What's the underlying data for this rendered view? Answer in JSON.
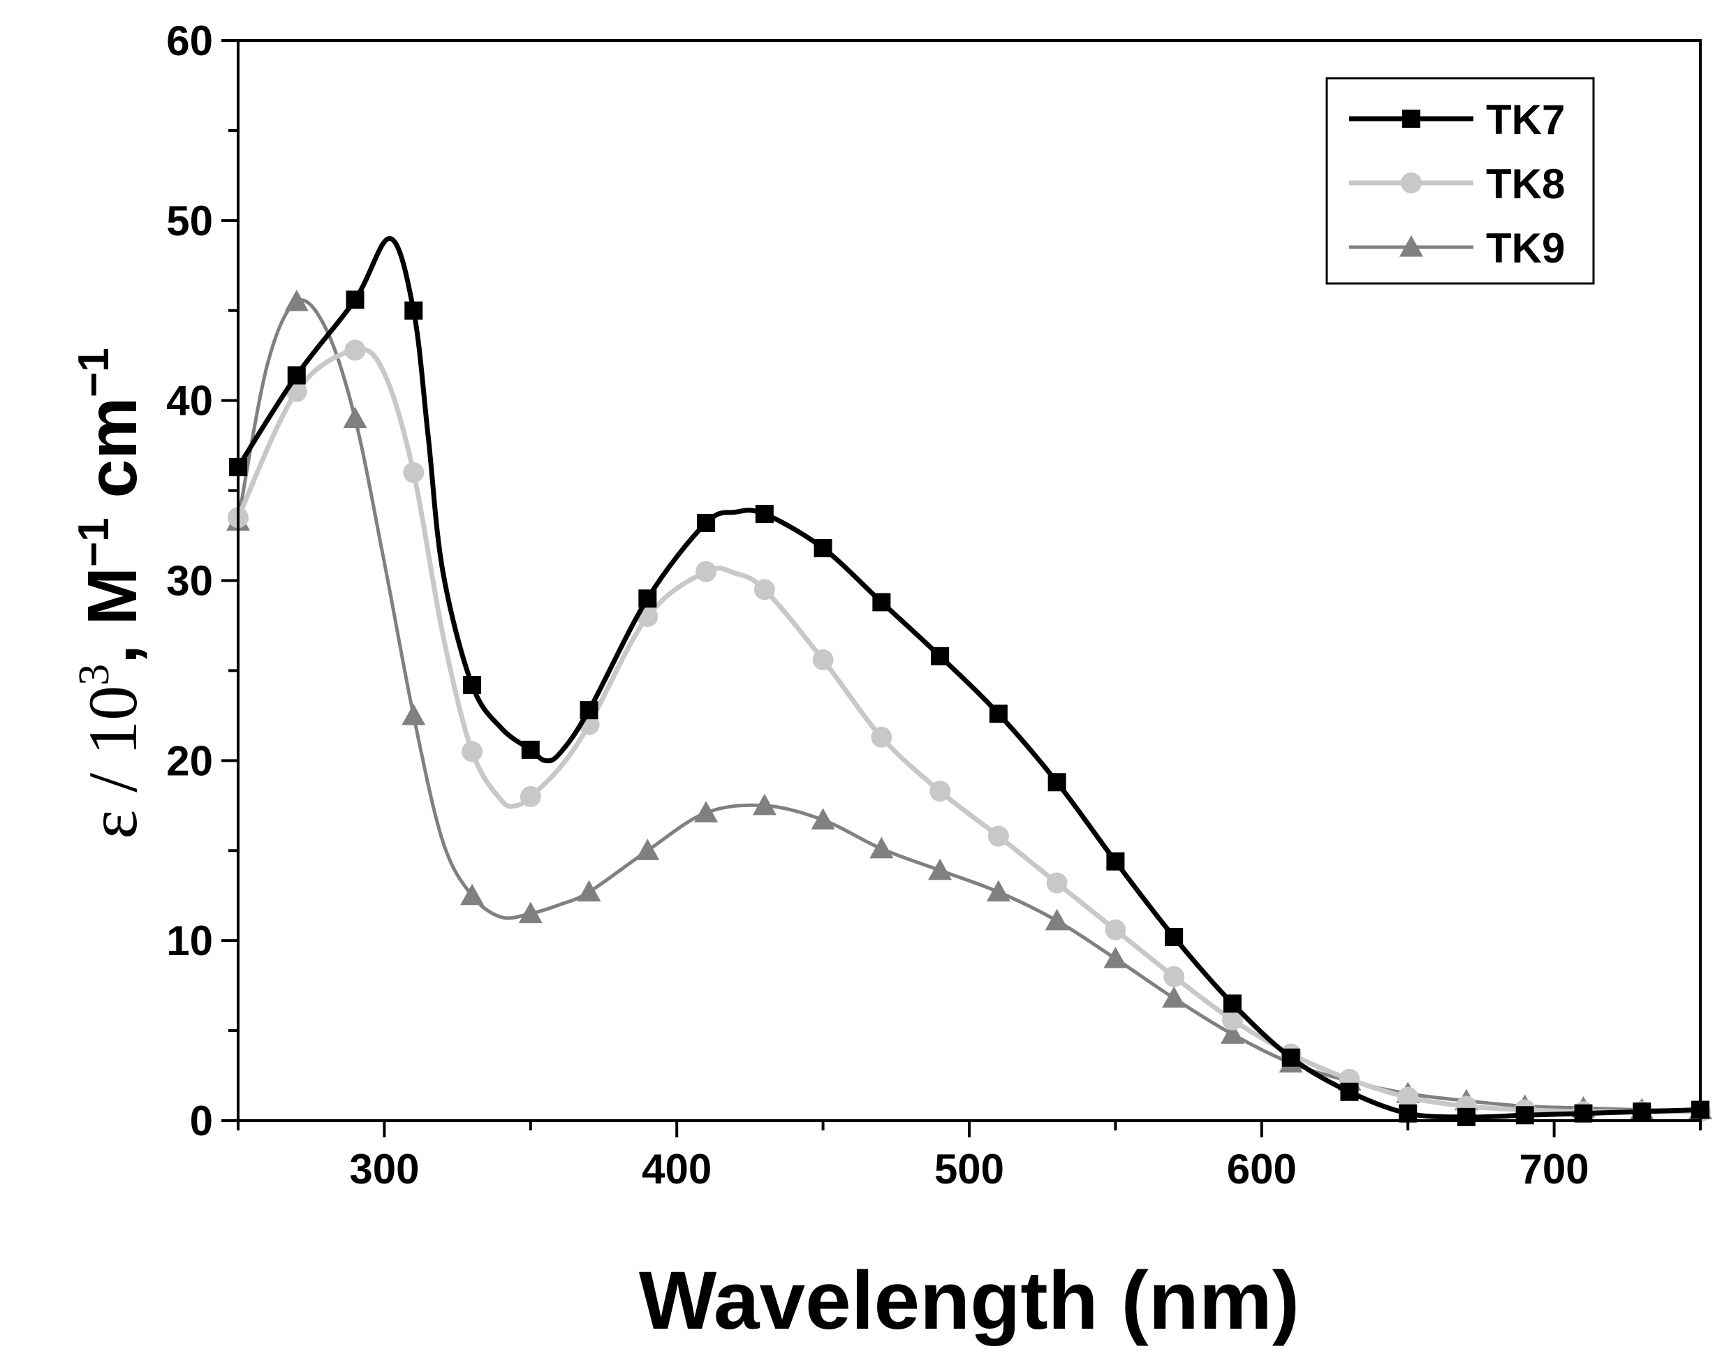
{
  "chart_data": {
    "type": "line",
    "title": "",
    "xlabel": "Wavelength (nm)",
    "ylabel": {
      "prefix": "ε / 10",
      "prefix_sup": "3",
      "sep": ", ",
      "m": "M",
      "m_sup": "−1",
      "cm": " cm",
      "cm_sup": "−1"
    },
    "xlim": [
      250,
      750
    ],
    "ylim": [
      0,
      60
    ],
    "xticks": [
      300,
      400,
      500,
      600,
      700
    ],
    "xtick_labels": [
      "300",
      "400",
      "500",
      "600",
      "700"
    ],
    "yticks": [
      0,
      10,
      20,
      30,
      40,
      50,
      60
    ],
    "ytick_labels": [
      "0",
      "10",
      "20",
      "30",
      "40",
      "50",
      "60"
    ],
    "grid": false,
    "legend_position": "top-right",
    "series": [
      {
        "name": "TK7",
        "color": "#000000",
        "marker": "square",
        "x": [
          250,
          270,
          290,
          302,
          310,
          315,
          320,
          330,
          340,
          350,
          355,
          360,
          370,
          390,
          410,
          420,
          430,
          450,
          470,
          490,
          510,
          530,
          550,
          570,
          590,
          610,
          630,
          650,
          670,
          690,
          710,
          730,
          750
        ],
        "y": [
          36.3,
          41.4,
          45.6,
          49.0,
          45.0,
          38.0,
          30.5,
          24.2,
          21.8,
          20.6,
          20.0,
          20.4,
          22.8,
          29.0,
          33.2,
          33.8,
          33.7,
          31.8,
          28.8,
          25.8,
          22.6,
          18.8,
          14.4,
          10.2,
          6.5,
          3.5,
          1.6,
          0.4,
          0.2,
          0.3,
          0.4,
          0.5,
          0.6
        ],
        "marker_x": [
          250,
          270,
          290,
          310,
          330,
          350,
          370,
          390,
          410,
          430,
          450,
          470,
          490,
          510,
          530,
          550,
          570,
          590,
          610,
          630,
          650,
          670,
          690,
          710,
          730,
          750
        ],
        "marker_y": [
          36.3,
          41.4,
          45.6,
          45.0,
          24.2,
          20.6,
          22.8,
          29.0,
          33.2,
          33.7,
          31.8,
          28.8,
          25.8,
          22.6,
          18.8,
          14.4,
          10.2,
          6.5,
          3.5,
          1.6,
          0.4,
          0.2,
          0.3,
          0.4,
          0.5,
          0.6
        ]
      },
      {
        "name": "TK8",
        "color": "#c8c8c8",
        "marker": "circle",
        "x": [
          250,
          270,
          290,
          300,
          310,
          320,
          330,
          340,
          345,
          350,
          360,
          370,
          390,
          410,
          420,
          430,
          450,
          470,
          490,
          510,
          530,
          550,
          570,
          590,
          610,
          630,
          650,
          670,
          690,
          710,
          730,
          750
        ],
        "y": [
          33.5,
          40.5,
          42.8,
          41.5,
          36.0,
          27.0,
          20.5,
          17.8,
          17.5,
          18.0,
          19.6,
          22.0,
          28.0,
          30.5,
          30.4,
          29.5,
          25.6,
          21.3,
          18.3,
          15.8,
          13.2,
          10.6,
          8.0,
          5.6,
          3.7,
          2.3,
          1.3,
          0.8,
          0.6,
          0.5,
          0.5,
          0.5
        ],
        "marker_x": [
          250,
          270,
          290,
          310,
          330,
          350,
          370,
          390,
          410,
          430,
          450,
          470,
          490,
          510,
          530,
          550,
          570,
          590,
          610,
          630,
          650,
          670,
          690,
          710,
          730,
          750
        ],
        "marker_y": [
          33.5,
          40.5,
          42.8,
          36.0,
          20.5,
          18.0,
          22.0,
          28.0,
          30.5,
          29.5,
          25.6,
          21.3,
          18.3,
          15.8,
          13.2,
          10.6,
          8.0,
          5.6,
          3.7,
          2.3,
          1.3,
          0.8,
          0.6,
          0.5,
          0.5,
          0.5
        ]
      },
      {
        "name": "TK9",
        "color": "#808080",
        "marker": "triangle",
        "x": [
          250,
          260,
          270,
          280,
          290,
          300,
          310,
          320,
          330,
          340,
          350,
          360,
          370,
          390,
          410,
          430,
          450,
          470,
          490,
          510,
          530,
          550,
          570,
          590,
          610,
          630,
          650,
          670,
          690,
          710,
          730,
          750
        ],
        "y": [
          33.3,
          42.0,
          45.5,
          44.0,
          39.0,
          31.0,
          22.5,
          15.5,
          12.5,
          11.3,
          11.5,
          12.0,
          12.7,
          15.0,
          17.1,
          17.5,
          16.7,
          15.1,
          13.9,
          12.7,
          11.1,
          9.0,
          6.8,
          4.8,
          3.2,
          2.2,
          1.5,
          1.1,
          0.8,
          0.7,
          0.6,
          0.6
        ],
        "marker_x": [
          250,
          270,
          290,
          310,
          330,
          350,
          370,
          390,
          410,
          430,
          450,
          470,
          490,
          510,
          530,
          550,
          570,
          590,
          610,
          630,
          650,
          670,
          690,
          710,
          730,
          750
        ],
        "marker_y": [
          33.3,
          45.5,
          39.0,
          22.5,
          12.5,
          11.5,
          12.7,
          15.0,
          17.1,
          17.5,
          16.7,
          15.1,
          13.9,
          12.7,
          11.1,
          9.0,
          6.8,
          4.8,
          3.2,
          2.2,
          1.5,
          1.1,
          0.8,
          0.7,
          0.6,
          0.6
        ]
      }
    ]
  }
}
